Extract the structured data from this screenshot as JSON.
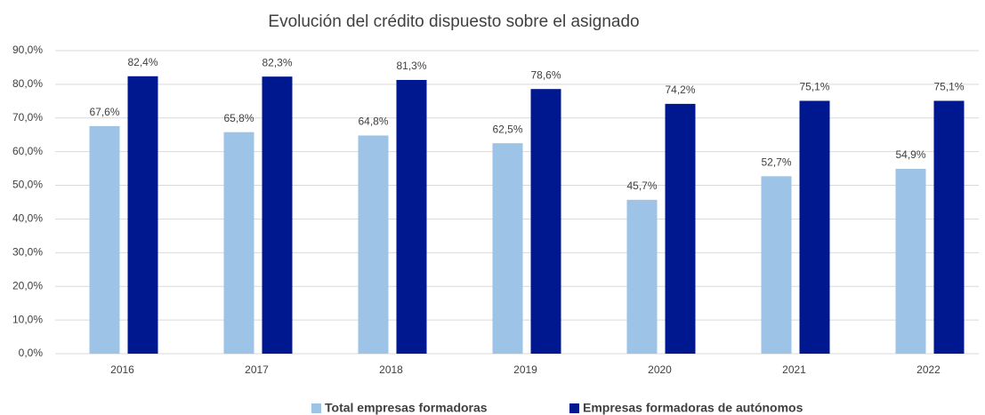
{
  "chart_data": {
    "type": "bar",
    "title": "Evolución del crédito dispuesto sobre el asignado",
    "categories": [
      "2016",
      "2017",
      "2018",
      "2019",
      "2020",
      "2021",
      "2022"
    ],
    "series": [
      {
        "name": "Total empresas formadoras",
        "color": "#9dc3e6",
        "values": [
          67.6,
          65.8,
          64.8,
          62.5,
          45.7,
          52.7,
          54.9
        ],
        "value_labels": [
          "67,6%",
          "65,8%",
          "64,8%",
          "62,5%",
          "45,7%",
          "52,7%",
          "54,9%"
        ]
      },
      {
        "name": "Empresas formadoras de autónomos",
        "color": "#00188f",
        "values": [
          82.4,
          82.3,
          81.3,
          78.6,
          74.2,
          75.1,
          75.1
        ],
        "value_labels": [
          "82,4%",
          "82,3%",
          "81,3%",
          "78,6%",
          "74,2%",
          "75,1%",
          "75,1%"
        ]
      }
    ],
    "ylim": [
      0,
      90
    ],
    "yticks": [
      {
        "value": 0,
        "label": "0,0%"
      },
      {
        "value": 10,
        "label": "10,0%"
      },
      {
        "value": 20,
        "label": "20,0%"
      },
      {
        "value": 30,
        "label": "30,0%"
      },
      {
        "value": 40,
        "label": "40,0%"
      },
      {
        "value": 50,
        "label": "50,0%"
      },
      {
        "value": 60,
        "label": "60,0%"
      },
      {
        "value": 70,
        "label": "70,0%"
      },
      {
        "value": 80,
        "label": "80,0%"
      },
      {
        "value": 90,
        "label": "90,0%"
      }
    ],
    "grid": true,
    "legend": "bottom"
  }
}
